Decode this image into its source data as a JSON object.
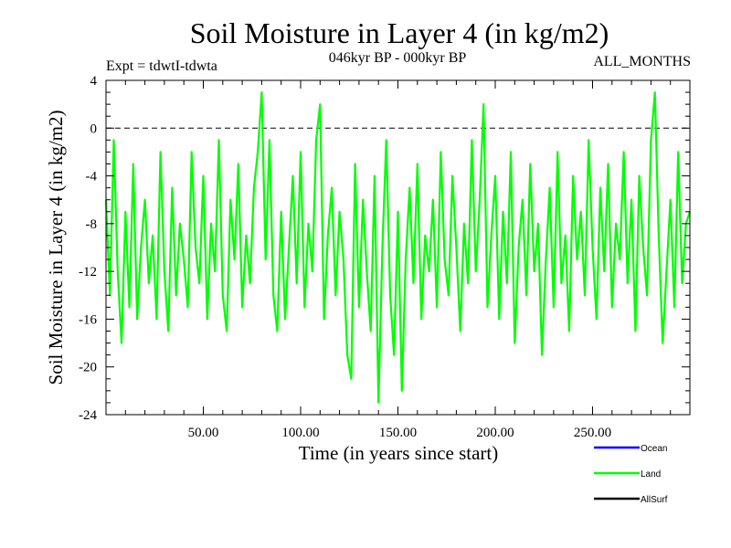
{
  "chart_data": {
    "type": "line",
    "title": "Soil Moisture in Layer 4 (in kg/m2)",
    "subtitle_left": "Expt = tdwtI-tdwta",
    "subtitle_center": "046kyr BP - 000kyr BP",
    "subtitle_right": "ALL_MONTHS",
    "xlabel": "Time (in years since start)",
    "ylabel": "Soil Moisture in Layer 4 (in kg/m2)",
    "xlim": [
      0,
      300
    ],
    "ylim": [
      -24,
      4
    ],
    "x_ticks": [
      50,
      100,
      150,
      200,
      250
    ],
    "x_tick_labels": [
      "50.00",
      "100.00",
      "150.00",
      "200.00",
      "250.00"
    ],
    "y_ticks": [
      4,
      0,
      -4,
      -8,
      -12,
      -16,
      -20,
      -24
    ],
    "y_tick_labels": [
      "4",
      "0",
      "-4",
      "-8",
      "-12",
      "-16",
      "-20",
      "-24"
    ],
    "reference_line": 0,
    "legend": [
      {
        "name": "Ocean",
        "color": "#0000ff"
      },
      {
        "name": "Land",
        "color": "#00ff00"
      },
      {
        "name": "AllSurf",
        "color": "#000000"
      }
    ],
    "series": [
      {
        "name": "Land",
        "color": "#00ff00",
        "x": [
          0,
          2,
          4,
          6,
          8,
          10,
          12,
          14,
          16,
          18,
          20,
          22,
          24,
          26,
          28,
          30,
          32,
          34,
          36,
          38,
          40,
          42,
          44,
          46,
          48,
          50,
          52,
          54,
          56,
          58,
          60,
          62,
          64,
          66,
          68,
          70,
          72,
          74,
          76,
          78,
          80,
          82,
          84,
          86,
          88,
          90,
          92,
          94,
          96,
          98,
          100,
          102,
          104,
          106,
          108,
          110,
          112,
          114,
          116,
          118,
          120,
          122,
          124,
          126,
          128,
          130,
          132,
          134,
          136,
          138,
          140,
          142,
          144,
          146,
          148,
          150,
          152,
          154,
          156,
          158,
          160,
          162,
          164,
          166,
          168,
          170,
          172,
          174,
          176,
          178,
          180,
          182,
          184,
          186,
          188,
          190,
          192,
          194,
          196,
          198,
          200,
          202,
          204,
          206,
          208,
          210,
          212,
          214,
          216,
          218,
          220,
          222,
          224,
          226,
          228,
          230,
          232,
          234,
          236,
          238,
          240,
          242,
          244,
          246,
          248,
          250,
          252,
          254,
          256,
          258,
          260,
          262,
          264,
          266,
          268,
          270,
          272,
          274,
          276,
          278,
          280,
          282,
          284,
          286,
          288,
          290,
          292,
          294,
          296,
          298,
          300
        ],
        "values": [
          -6,
          -14,
          -1,
          -12,
          -18,
          -7,
          -15,
          -3,
          -16,
          -10,
          -6,
          -13,
          -9,
          -16,
          -2,
          -12,
          -17,
          -5,
          -14,
          -8,
          -11,
          -15,
          -2,
          -10,
          -13,
          -4,
          -16,
          -8,
          -12,
          -1,
          -14,
          -17,
          -6,
          -11,
          -3,
          -15,
          -9,
          -13,
          -5,
          -2,
          3,
          -11,
          -1,
          -14,
          -17,
          -7,
          -16,
          -10,
          -4,
          -13,
          -2,
          -15,
          -8,
          -12,
          -1,
          2,
          -16,
          -9,
          -5,
          -14,
          -7,
          -11,
          -19,
          -21,
          -3,
          -15,
          -6,
          -12,
          -17,
          -4,
          -23,
          -10,
          -1,
          -14,
          -19,
          -7,
          -22,
          -11,
          -5,
          -13,
          -3,
          -16,
          -9,
          -12,
          -6,
          -15,
          -2,
          -11,
          -14,
          -4,
          -10,
          -17,
          -8,
          -13,
          -1,
          -12,
          -6,
          2,
          -15,
          -9,
          -4,
          -16,
          -7,
          -13,
          -2,
          -18,
          -10,
          -6,
          -14,
          -3,
          -12,
          -8,
          -19,
          -11,
          -5,
          -15,
          -2,
          -13,
          -9,
          -17,
          -4,
          -11,
          -7,
          -14,
          -1,
          -10,
          -16,
          -5,
          -12,
          -3,
          -15,
          -8,
          -11,
          -2,
          -13,
          -6,
          -17,
          -4,
          -10,
          -14,
          -1,
          3,
          -9,
          -18,
          -12,
          -6,
          -15,
          -2,
          -13,
          -8,
          -7
        ]
      },
      {
        "name": "Ocean",
        "color": "#0000ff",
        "x": [],
        "values": []
      },
      {
        "name": "AllSurf",
        "color": "#000000",
        "x": [],
        "values": []
      }
    ]
  }
}
